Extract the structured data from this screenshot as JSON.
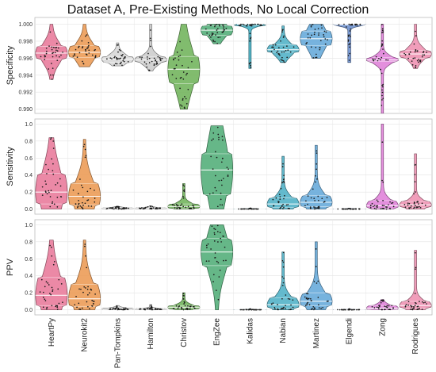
{
  "chart_data": {
    "type": "violin",
    "title": "Dataset A, Pre-Existing Methods, No Local Correction",
    "categories": [
      "HeartPy",
      "Neurokit2",
      "Pan-Tompkins",
      "Hamilton",
      "Christov",
      "EngZee",
      "Kalidas",
      "Nabian",
      "Martinez",
      "Elgendi",
      "Zong",
      "Rodrigues"
    ],
    "colors": [
      "#e8799a",
      "#ec9a53",
      "#d7d7d7",
      "#cccccc",
      "#6fb35a",
      "#51ad77",
      "#41aec3",
      "#4fb0c6",
      "#64a9da",
      "#6b8fcf",
      "#df7fd8",
      "#ee8fb1"
    ],
    "panels": [
      {
        "ylabel": "Specificity",
        "ylim": [
          0.9895,
          1.0008
        ],
        "yticks": [
          "0.990",
          "0.992",
          "0.994",
          "0.996",
          "0.998",
          "1.000"
        ],
        "ytick_values": [
          0.99,
          0.992,
          0.994,
          0.996,
          0.998,
          1.0
        ],
        "series": [
          {
            "min": 0.9935,
            "max": 1.0,
            "q1": 0.9959,
            "median": 0.9966,
            "q3": 0.9974
          },
          {
            "min": 0.995,
            "max": 1.0,
            "q1": 0.9961,
            "median": 0.9967,
            "q3": 0.9975
          },
          {
            "min": 0.9951,
            "max": 0.9978,
            "q1": 0.9955,
            "median": 0.9959,
            "q3": 0.9962
          },
          {
            "min": 0.9945,
            "max": 1.0,
            "q1": 0.9955,
            "median": 0.9958,
            "q3": 0.9962
          },
          {
            "min": 0.99,
            "max": 1.0,
            "q1": 0.993,
            "median": 0.9947,
            "q3": 0.9962
          },
          {
            "min": 0.9977,
            "max": 1.0,
            "q1": 0.9987,
            "median": 0.9993,
            "q3": 0.9998
          },
          {
            "min": 0.9948,
            "max": 1.0,
            "q1": 0.9998,
            "median": 1.0,
            "q3": 1.0
          },
          {
            "min": 0.9955,
            "max": 0.9998,
            "q1": 0.9967,
            "median": 0.997,
            "q3": 0.9976
          },
          {
            "min": 0.996,
            "max": 1.0,
            "q1": 0.9975,
            "median": 0.9983,
            "q3": 0.9992
          },
          {
            "min": 0.9955,
            "max": 1.0,
            "q1": 0.9999,
            "median": 1.0,
            "q3": 1.0
          },
          {
            "min": 0.9895,
            "max": 1.0,
            "q1": 0.9956,
            "median": 0.9958,
            "q3": 0.9961
          },
          {
            "min": 0.9948,
            "max": 1.0,
            "q1": 0.996,
            "median": 0.9965,
            "q3": 0.9969
          }
        ]
      },
      {
        "ylabel": "Sensitivity",
        "ylim": [
          -0.06,
          1.06
        ],
        "yticks": [
          "0.0",
          "0.2",
          "0.4",
          "0.6",
          "0.8",
          "1.0"
        ],
        "ytick_values": [
          0.0,
          0.2,
          0.4,
          0.6,
          0.8,
          1.0
        ],
        "series": [
          {
            "min": 0.0,
            "max": 0.84,
            "q1": 0.06,
            "median": 0.2,
            "q3": 0.42
          },
          {
            "min": 0.0,
            "max": 0.82,
            "q1": 0.05,
            "median": 0.15,
            "q3": 0.3
          },
          {
            "min": 0.0,
            "max": 0.03,
            "q1": 0.003,
            "median": 0.008,
            "q3": 0.015
          },
          {
            "min": 0.0,
            "max": 0.04,
            "q1": 0.003,
            "median": 0.008,
            "q3": 0.015
          },
          {
            "min": 0.0,
            "max": 0.3,
            "q1": 0.01,
            "median": 0.03,
            "q3": 0.06
          },
          {
            "min": 0.0,
            "max": 0.98,
            "q1": 0.17,
            "median": 0.46,
            "q3": 0.65
          },
          {
            "min": 0.0,
            "max": 0.01,
            "q1": 0.0,
            "median": 0.001,
            "q3": 0.002
          },
          {
            "min": 0.0,
            "max": 0.62,
            "q1": 0.02,
            "median": 0.06,
            "q3": 0.13
          },
          {
            "min": 0.0,
            "max": 0.75,
            "q1": 0.03,
            "median": 0.08,
            "q3": 0.16
          },
          {
            "min": 0.0,
            "max": 0.01,
            "q1": 0.0,
            "median": 0.001,
            "q3": 0.002
          },
          {
            "min": 0.0,
            "max": 1.0,
            "q1": 0.01,
            "median": 0.04,
            "q3": 0.1
          },
          {
            "min": 0.0,
            "max": 0.65,
            "q1": 0.02,
            "median": 0.05,
            "q3": 0.09
          }
        ]
      },
      {
        "ylabel": "PPV",
        "ylim": [
          -0.06,
          1.06
        ],
        "yticks": [
          "0.0",
          "0.2",
          "0.4",
          "0.6",
          "0.8",
          "1.0"
        ],
        "ytick_values": [
          0.0,
          0.2,
          0.4,
          0.6,
          0.8,
          1.0
        ],
        "series": [
          {
            "min": 0.0,
            "max": 0.82,
            "q1": 0.05,
            "median": 0.17,
            "q3": 0.38
          },
          {
            "min": 0.0,
            "max": 0.82,
            "q1": 0.04,
            "median": 0.13,
            "q3": 0.3
          },
          {
            "min": 0.0,
            "max": 0.05,
            "q1": 0.003,
            "median": 0.01,
            "q3": 0.02
          },
          {
            "min": 0.0,
            "max": 0.06,
            "q1": 0.003,
            "median": 0.008,
            "q3": 0.015
          },
          {
            "min": 0.0,
            "max": 0.2,
            "q1": 0.01,
            "median": 0.03,
            "q3": 0.05
          },
          {
            "min": 0.0,
            "max": 1.0,
            "q1": 0.52,
            "median": 0.68,
            "q3": 0.84
          },
          {
            "min": 0.0,
            "max": 0.01,
            "q1": 0.0,
            "median": 0.001,
            "q3": 0.002
          },
          {
            "min": 0.0,
            "max": 0.68,
            "q1": 0.02,
            "median": 0.06,
            "q3": 0.14
          },
          {
            "min": 0.0,
            "max": 0.8,
            "q1": 0.05,
            "median": 0.1,
            "q3": 0.2
          },
          {
            "min": 0.0,
            "max": 0.01,
            "q1": 0.0,
            "median": 0.001,
            "q3": 0.002
          },
          {
            "min": 0.0,
            "max": 0.12,
            "q1": 0.005,
            "median": 0.02,
            "q3": 0.05
          },
          {
            "min": 0.0,
            "max": 0.7,
            "q1": 0.02,
            "median": 0.05,
            "q3": 0.1
          }
        ]
      }
    ]
  }
}
